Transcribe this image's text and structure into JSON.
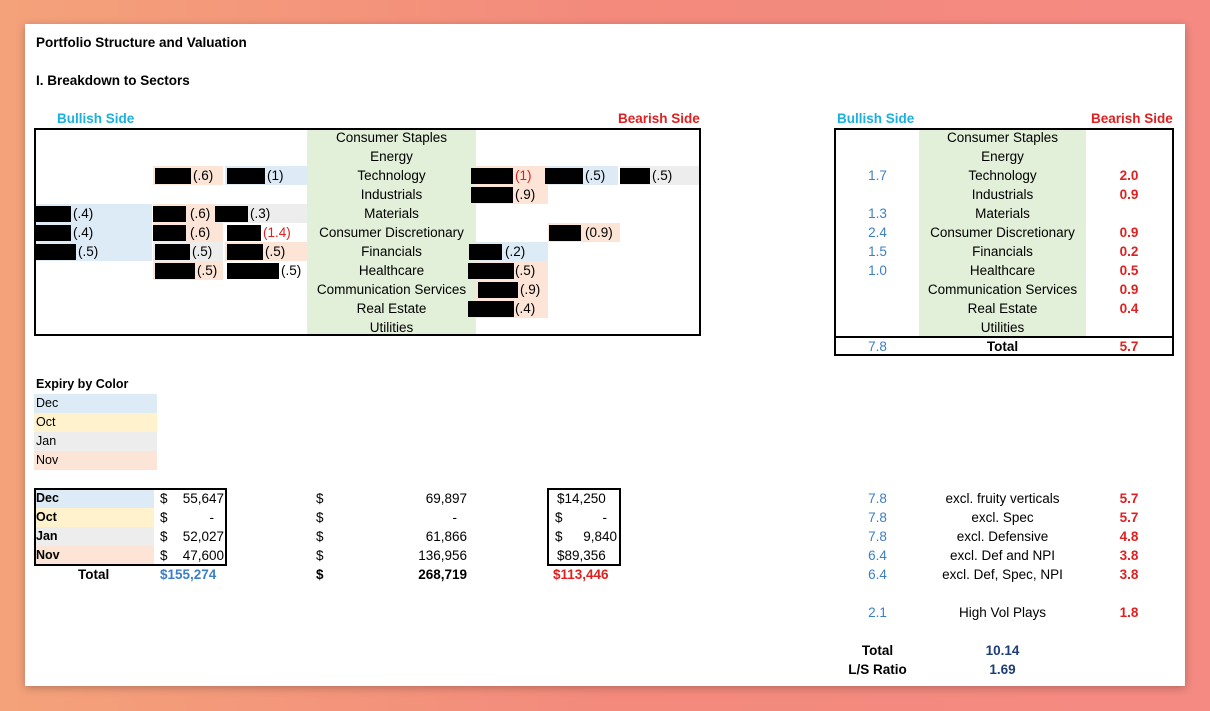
{
  "title": "Portfolio Structure and Valuation",
  "section_title": "I. Breakdown to Sectors",
  "left": {
    "bullish_label": "Bullish Side",
    "bearish_label": "Bearish Side",
    "sectors": [
      "Consumer Staples",
      "Energy",
      "Technology",
      "Industrials",
      "Materials",
      "Consumer Discretionary",
      "Financials",
      "Healthcare",
      "Communication Services",
      "Real Estate",
      "Utilities"
    ],
    "values": {
      "tech_b1": "(.6)",
      "tech_b2": "(1)",
      "tech_s1": "(1)",
      "tech_s2": "(.5)",
      "tech_s3": "(.5)",
      "ind_s1": "(.9)",
      "mat_b1": "(.4)",
      "mat_b2": "(.6)",
      "mat_b3": "(.3)",
      "cd_b1": "(.4)",
      "cd_b2": "(.6)",
      "cd_b3": "(1.4)",
      "cd_s1": "(0.9)",
      "fin_b1": "(.5)",
      "fin_b2": "(.5)",
      "fin_b3": "(.5)",
      "fin_s1": "(.2)",
      "hc_b1": "(.5)",
      "hc_b2": "(.5)",
      "hc_s1": "(.5)",
      "cs_s1": "(.9)",
      "re_s1": "(.4)"
    }
  },
  "right": {
    "bullish_label": "Bullish Side",
    "bearish_label": "Bearish Side",
    "rows": [
      {
        "sector": "Consumer Staples",
        "bull": "",
        "bear": ""
      },
      {
        "sector": "Energy",
        "bull": "",
        "bear": ""
      },
      {
        "sector": "Technology",
        "bull": "1.7",
        "bear": "2.0"
      },
      {
        "sector": "Industrials",
        "bull": "",
        "bear": "0.9"
      },
      {
        "sector": "Materials",
        "bull": "1.3",
        "bear": ""
      },
      {
        "sector": "Consumer Discretionary",
        "bull": "2.4",
        "bear": "0.9"
      },
      {
        "sector": "Financials",
        "bull": "1.5",
        "bear": "0.2"
      },
      {
        "sector": "Healthcare",
        "bull": "1.0",
        "bear": "0.5"
      },
      {
        "sector": "Communication Services",
        "bull": "",
        "bear": "0.9"
      },
      {
        "sector": "Real Estate",
        "bull": "",
        "bear": "0.4"
      },
      {
        "sector": "Utilities",
        "bull": "",
        "bear": ""
      }
    ],
    "total": {
      "bull": "7.8",
      "label": "Total",
      "bear": "5.7"
    }
  },
  "legend": {
    "title": "Expiry by Color",
    "items": [
      "Dec",
      "Oct",
      "Jan",
      "Nov"
    ]
  },
  "expiry_table": {
    "rows": [
      {
        "month": "Dec",
        "a_cur": "$",
        "a_val": "55,647",
        "b_cur": "$",
        "b_val": "69,897",
        "c_cur": "$14,250",
        "c_val": ""
      },
      {
        "month": "Oct",
        "a_cur": "$",
        "a_val": "-",
        "b_cur": "$",
        "b_val": "-",
        "c_cur": "$",
        "c_val": "-"
      },
      {
        "month": "Jan",
        "a_cur": "$",
        "a_val": "52,027",
        "b_cur": "$",
        "b_val": "61,866",
        "c_cur": "$",
        "c_val": "9,840"
      },
      {
        "month": "Nov",
        "a_cur": "$",
        "a_val": "47,600",
        "b_cur": "$",
        "b_val": "136,956",
        "c_cur": "$89,356",
        "c_val": ""
      }
    ],
    "total": {
      "label": "Total",
      "a": "$155,274",
      "b_cur": "$",
      "b": "268,719",
      "c": "$113,446"
    }
  },
  "exclusions": [
    {
      "bull": "7.8",
      "label": "excl. fruity verticals",
      "bear": "5.7"
    },
    {
      "bull": "7.8",
      "label": "excl. Spec",
      "bear": "5.7"
    },
    {
      "bull": "7.8",
      "label": "excl. Defensive",
      "bear": "4.8"
    },
    {
      "bull": "6.4",
      "label": "excl. Def and NPI",
      "bear": "3.8"
    },
    {
      "bull": "6.4",
      "label": "excl. Def, Spec, NPI",
      "bear": "3.8"
    }
  ],
  "high_vol": {
    "bull": "2.1",
    "label": "High Vol Plays",
    "bear": "1.8"
  },
  "summary": {
    "total_label": "Total",
    "total_value": "10.14",
    "ratio_label": "L/S Ratio",
    "ratio_value": "1.69"
  },
  "colors": {
    "dec": "#ddebf7",
    "oct": "#fff2cc",
    "jan": "#ededed",
    "nov": "#fce4d6",
    "sector_bg": "#e2efd9",
    "bull": "#1ab0e0",
    "bear": "#e02020"
  }
}
